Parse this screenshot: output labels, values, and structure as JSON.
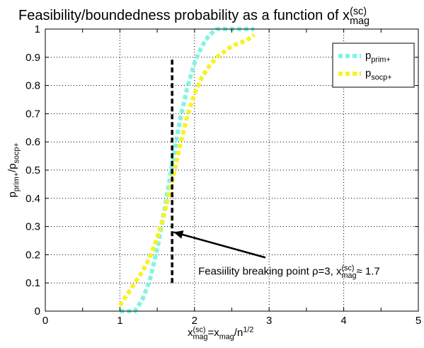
{
  "chart_data": {
    "type": "line",
    "title": "Feasibility/boundedness probability as a function of x",
    "title_sup": "(sc)",
    "title_sub": "mag",
    "xlabel": {
      "parts": [
        {
          "text": "x",
          "shift": "none"
        },
        {
          "text": "(sc)",
          "shift": "super"
        },
        {
          "text": "mag",
          "shift": "sub"
        },
        {
          "text": "=x",
          "shift": "none"
        },
        {
          "text": "mag",
          "shift": "sub"
        },
        {
          "text": "/n",
          "shift": "none"
        },
        {
          "text": "1/2",
          "shift": "super"
        }
      ]
    },
    "ylabel": {
      "parts": [
        {
          "text": "p",
          "shift": "none"
        },
        {
          "text": "prim+",
          "shift": "sub"
        },
        {
          "text": "/p",
          "shift": "none"
        },
        {
          "text": "socp+",
          "shift": "sub"
        }
      ]
    },
    "xlim": [
      0,
      5
    ],
    "ylim": [
      0,
      1
    ],
    "xticks": [
      0,
      0.5,
      1,
      1.5,
      2,
      2.5,
      3,
      3.5,
      4,
      4.5,
      5
    ],
    "xtick_labels": [
      "0",
      "",
      "1",
      "",
      "2",
      "",
      "3",
      "",
      "4",
      "",
      "5"
    ],
    "yticks": [
      0,
      0.1,
      0.2,
      0.3,
      0.4,
      0.5,
      0.6,
      0.7,
      0.8,
      0.9,
      1
    ],
    "ytick_labels": [
      "0",
      "0.1",
      "0.2",
      "0.3",
      "0.4",
      "0.5",
      "0.6",
      "0.7",
      "0.8",
      "0.9",
      "1"
    ],
    "grid": true,
    "legend_position": "top-right",
    "series": [
      {
        "name": "p",
        "name_sub": "prim+",
        "color": "#7ff5e0",
        "x": [
          1.0,
          1.1,
          1.2,
          1.3,
          1.4,
          1.5,
          1.6,
          1.7,
          1.8,
          1.9,
          2.0,
          2.1,
          2.2,
          2.3,
          2.4,
          2.5,
          2.6,
          2.7,
          2.8
        ],
        "y": [
          0.0,
          0.0,
          0.0,
          0.04,
          0.11,
          0.22,
          0.36,
          0.52,
          0.67,
          0.79,
          0.88,
          0.94,
          0.98,
          1.0,
          1.0,
          1.0,
          1.0,
          1.0,
          1.0
        ]
      },
      {
        "name": "p",
        "name_sub": "socp+",
        "color": "#f7f224",
        "x": [
          1.0,
          1.1,
          1.2,
          1.3,
          1.4,
          1.5,
          1.6,
          1.7,
          1.8,
          1.9,
          2.0,
          2.1,
          2.2,
          2.3,
          2.4,
          2.5,
          2.6,
          2.7,
          2.8
        ],
        "y": [
          0.02,
          0.06,
          0.1,
          0.14,
          0.19,
          0.26,
          0.35,
          0.46,
          0.58,
          0.69,
          0.77,
          0.83,
          0.87,
          0.9,
          0.92,
          0.94,
          0.95,
          0.96,
          0.98
        ]
      }
    ],
    "vline": {
      "x": 1.7,
      "y": [
        0.1,
        0.9
      ],
      "color": "#000000",
      "style": "dashed"
    },
    "annotation": {
      "parts": [
        {
          "text": "Feasiility breaking point ρ=3, x",
          "shift": "none"
        },
        {
          "text": "(sc)",
          "shift": "super"
        },
        {
          "text": "mag",
          "shift": "sub"
        },
        {
          "text": "≈ 1.7",
          "shift": "none"
        }
      ],
      "text_anchor_data": [
        2.05,
        0.14
      ],
      "arrow_from_data": [
        2.95,
        0.19
      ],
      "arrow_to_data": [
        1.72,
        0.28
      ]
    }
  }
}
